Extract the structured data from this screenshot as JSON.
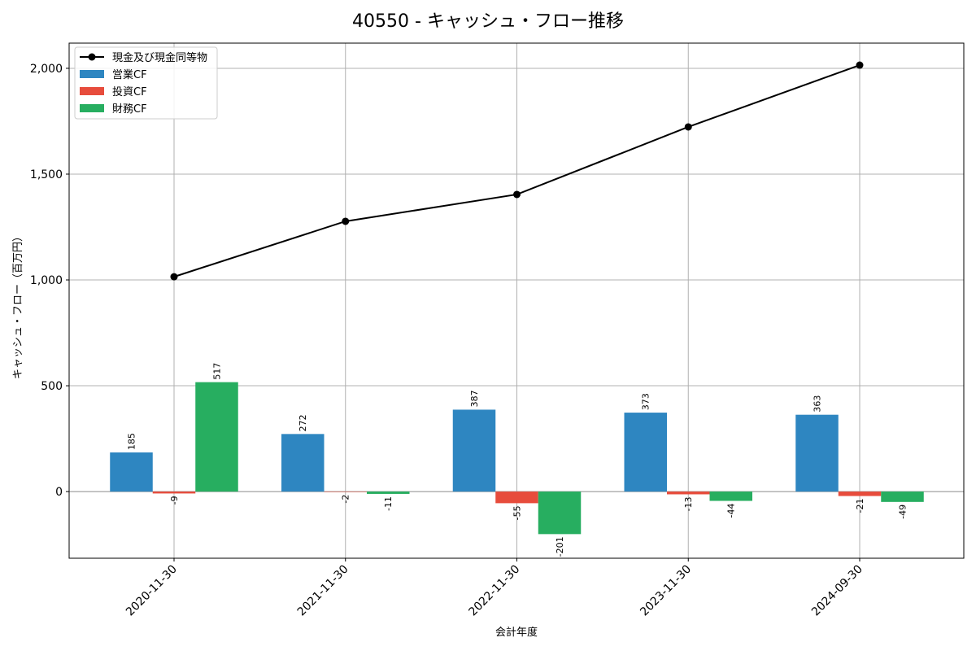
{
  "chart_data": {
    "type": "bar",
    "title": "40550 - キャッシュ・フロー推移",
    "xlabel": "会計年度",
    "ylabel": "キャッシュ・フロー（百万円）",
    "ylim": [
      -315,
      2119
    ],
    "yticks": [
      0,
      500,
      1000,
      1500,
      2000
    ],
    "ytick_labels": [
      "0",
      "500",
      "1,000",
      "1,500",
      "2,000"
    ],
    "grid": true,
    "legend_position": "top-left",
    "categories": [
      "2020-11-30",
      "2021-11-30",
      "2022-11-30",
      "2023-11-30",
      "2024-09-30"
    ],
    "series": [
      {
        "name": "営業CF",
        "kind": "bar",
        "color": "#2e86c1",
        "values": [
          185,
          272,
          387,
          373,
          363
        ]
      },
      {
        "name": "投資CF",
        "kind": "bar",
        "color": "#e74c3c",
        "values": [
          -9,
          -2,
          -55,
          -13,
          -21
        ]
      },
      {
        "name": "財務CF",
        "kind": "bar",
        "color": "#27ae60",
        "values": [
          517,
          -11,
          -201,
          -44,
          -49
        ]
      }
    ],
    "line": {
      "name": "現金及び現金同等物",
      "kind": "line",
      "color": "#000000",
      "values": [
        1015,
        1277,
        1404,
        1723,
        2015
      ]
    }
  }
}
